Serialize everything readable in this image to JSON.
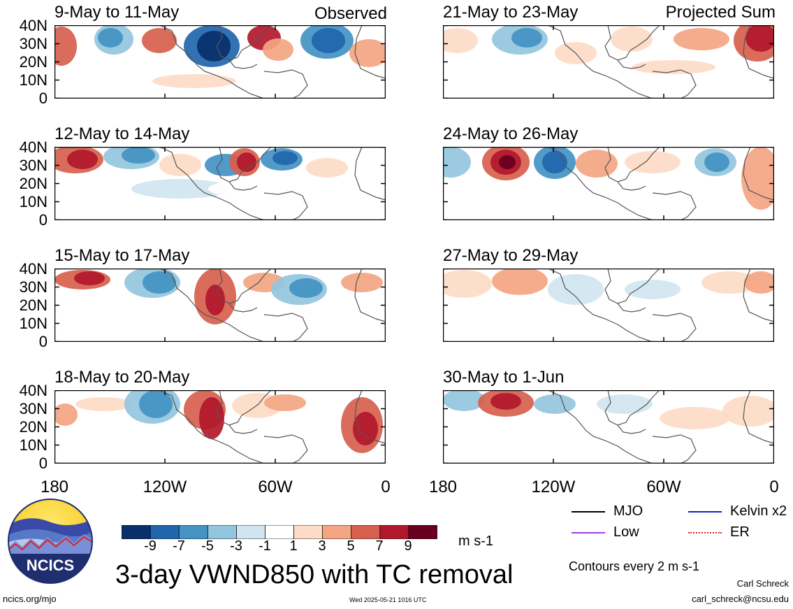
{
  "panels": [
    {
      "title": "9-May to 11-May",
      "tag": "Observed"
    },
    {
      "title": "21-May to 23-May",
      "tag": "Projected Sum"
    },
    {
      "title": "12-May to 14-May",
      "tag": ""
    },
    {
      "title": "24-May to 26-May",
      "tag": ""
    },
    {
      "title": "15-May to 17-May",
      "tag": ""
    },
    {
      "title": "27-May to 29-May",
      "tag": ""
    },
    {
      "title": "18-May to 20-May",
      "tag": ""
    },
    {
      "title": "30-May to 1-Jun",
      "tag": ""
    }
  ],
  "y_ticks": [
    "40N",
    "30N",
    "20N",
    "10N",
    "0"
  ],
  "x_ticks": [
    "180",
    "120W",
    "60W",
    "0"
  ],
  "colorbar": {
    "labels": [
      "-9",
      "-7",
      "-5",
      "-3",
      "-1",
      "1",
      "3",
      "5",
      "7",
      "9"
    ],
    "colors": [
      "#08306b",
      "#2166ac",
      "#4393c3",
      "#92c5de",
      "#d1e5f0",
      "#ffffff",
      "#fddbc7",
      "#f4a582",
      "#d6604d",
      "#b2182b",
      "#67001f"
    ],
    "units": "m s-1"
  },
  "legend": {
    "items": [
      {
        "label": "MJO",
        "color": "#000000"
      },
      {
        "label": "Kelvin x2",
        "color": "#1a1acc"
      },
      {
        "label": "Low",
        "color": "#a040e0"
      },
      {
        "label": "ER",
        "color": "#dd2222"
      }
    ],
    "contour_note": "Contours every 2 m s-1"
  },
  "main_title": "3-day VWND850 with TC removal",
  "logo_text": "NCICS",
  "footer": {
    "url": "ncics.org/mjo",
    "timestamp": "Wed 2025-05-21 1016 UTC",
    "author": "Carl Schreck",
    "email": "carl_schreck@ncsu.edu"
  }
}
